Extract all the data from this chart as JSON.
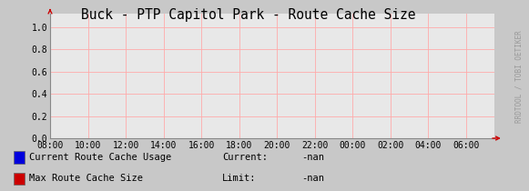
{
  "title": "Buck - PTP Capitol Park - Route Cache Size",
  "background_color": "#c8c8c8",
  "plot_bg_color": "#e8e8e8",
  "grid_color": "#ffaaaa",
  "border_color": "#999999",
  "x_labels": [
    "08:00",
    "10:00",
    "12:00",
    "14:00",
    "16:00",
    "18:00",
    "20:00",
    "22:00",
    "00:00",
    "02:00",
    "04:00",
    "06:00"
  ],
  "x_ticks": [
    0,
    2,
    4,
    6,
    8,
    10,
    12,
    14,
    16,
    18,
    20,
    22
  ],
  "x_max": 23.5,
  "ylim": [
    0.0,
    1.12
  ],
  "yticks": [
    0.0,
    0.2,
    0.4,
    0.6,
    0.8,
    1.0
  ],
  "arrow_color": "#cc0000",
  "legend": [
    {
      "label": "Current Route Cache Usage",
      "color": "#0000dd",
      "current": "Current:",
      "value": "-nan"
    },
    {
      "label": "Max Route Cache Size",
      "color": "#cc0000",
      "current": "Limit:",
      "value": "-nan"
    }
  ],
  "watermark": "RRDTOOL / TOBI OETIKER",
  "title_fontsize": 10.5,
  "tick_fontsize": 7.0,
  "legend_fontsize": 7.5,
  "watermark_fontsize": 5.5
}
